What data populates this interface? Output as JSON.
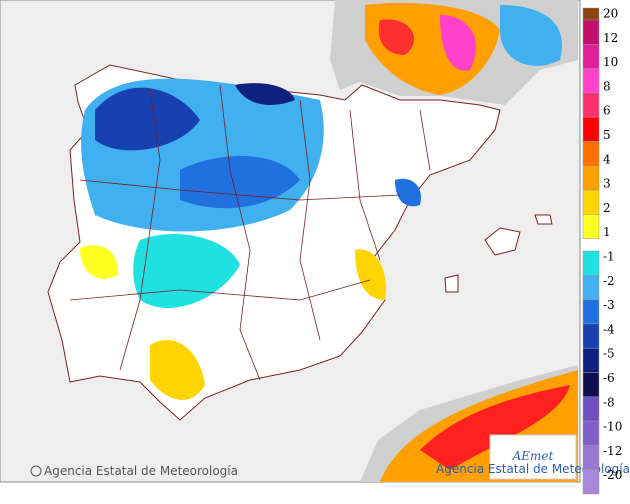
{
  "legend": {
    "items": [
      {
        "label": 20,
        "color": "#8b4513"
      },
      {
        "label": 12,
        "color": "#c0106a"
      },
      {
        "label": 10,
        "color": "#e0209a"
      },
      {
        "label": 8,
        "color": "#ff40c8"
      },
      {
        "label": 6,
        "color": "#ff3070"
      },
      {
        "label": 5,
        "color": "#ff0000"
      },
      {
        "label": 4,
        "color": "#ff7000"
      },
      {
        "label": 3,
        "color": "#ffa000"
      },
      {
        "label": 2,
        "color": "#ffd400"
      },
      {
        "label": 1,
        "color": "#ffff20"
      },
      {
        "label": -1,
        "color": "#20e0e0"
      },
      {
        "label": -2,
        "color": "#40b0f0"
      },
      {
        "label": -3,
        "color": "#2070e0"
      },
      {
        "label": -4,
        "color": "#1840b0"
      },
      {
        "label": -5,
        "color": "#102080"
      },
      {
        "label": -6,
        "color": "#101050"
      },
      {
        "label": -8,
        "color": "#7050c0"
      },
      {
        "label": -10,
        "color": "#8060c8"
      },
      {
        "label": -12,
        "color": "#9878d0"
      },
      {
        "label": -20,
        "color": "#a888d8"
      }
    ]
  },
  "footer": {
    "credit": "© Agencia Estatal de Meteorología"
  },
  "logo": {
    "mark": "AEmet",
    "caption": "Agencia Estatal de Meteorología"
  }
}
